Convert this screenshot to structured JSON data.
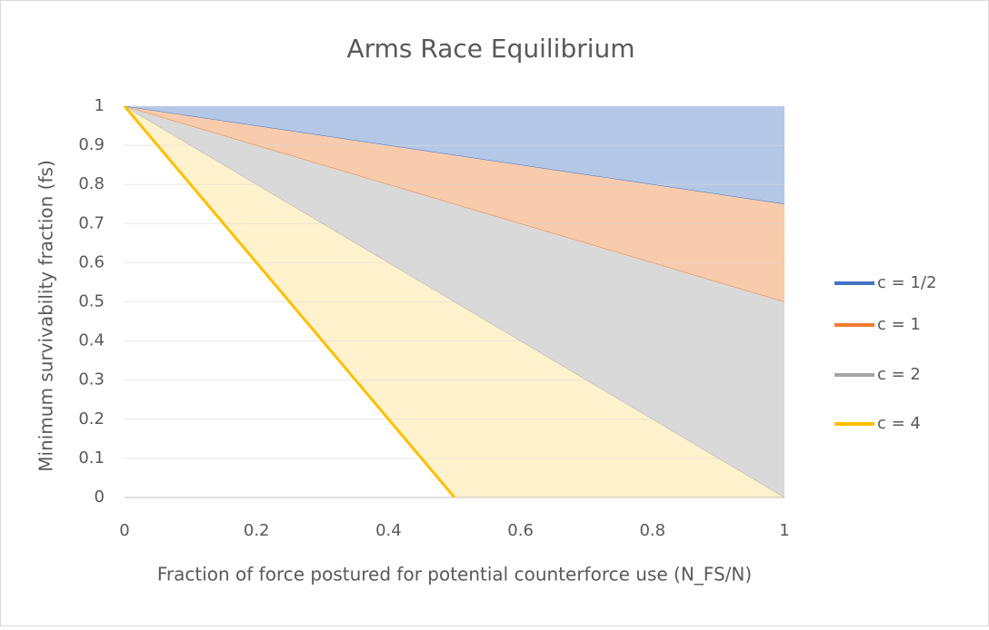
{
  "chart_data": {
    "type": "area",
    "title": "Arms Race Equilibrium",
    "x_label": "Fraction of force postured for potential counterforce use (N_FS/N)",
    "y_label": "Minimum survivability fraction (fs)",
    "x": [
      0,
      0.5,
      1
    ],
    "series": [
      {
        "name": "c = 1/2",
        "color": "#4472c4",
        "fill": "#b4c7e7",
        "values": [
          1,
          0.875,
          0.75
        ]
      },
      {
        "name": "c = 1",
        "color": "#ed7d31",
        "fill": "#f8cbad",
        "values": [
          1,
          0.75,
          0.5
        ]
      },
      {
        "name": "c = 2",
        "color": "#a5a5a5",
        "fill": "#d9d9d9",
        "values": [
          1,
          0.5,
          0
        ]
      },
      {
        "name": "c = 4",
        "color": "#ffc000",
        "fill": "#fff2cc",
        "values": [
          1,
          0,
          null
        ]
      }
    ],
    "xlim": [
      0,
      1
    ],
    "xticks": [
      0,
      0.2,
      0.4,
      0.6,
      0.8,
      1
    ],
    "ylim": [
      0,
      1
    ],
    "yticks": [
      0,
      0.1,
      0.2,
      0.3,
      0.4,
      0.5,
      0.6,
      0.7,
      0.8,
      0.9,
      1
    ],
    "grid": true,
    "legend": "right"
  }
}
